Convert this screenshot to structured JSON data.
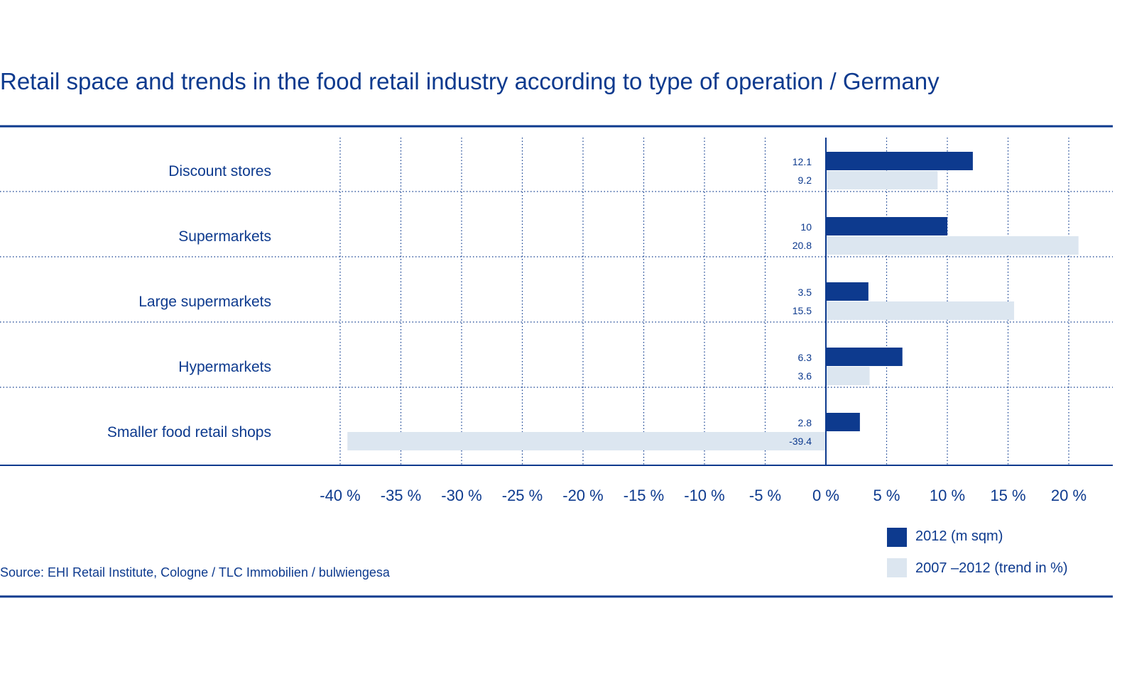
{
  "title": "Retail space and trends in the food retail industry according to type of operation / Germany",
  "source": "Source: EHI Retail Institute, Cologne / TLC Immobilien / bulwiengesa",
  "colors": {
    "primary": "#0d3a8e",
    "series_2012": "#0d3a8e",
    "series_trend": "#dce6f0"
  },
  "chart_data": {
    "type": "bar",
    "orientation": "horizontal",
    "title": "Retail space and trends in the food retail industry according to type of operation / Germany",
    "categories": [
      "Discount stores",
      "Supermarkets",
      "Large supermarkets",
      "Hypermarkets",
      "Smaller food retail shops"
    ],
    "series": [
      {
        "name": "2012 (m sqm)",
        "values": [
          12.1,
          10,
          3.5,
          6.3,
          2.8
        ],
        "labels": [
          "12.1",
          "10",
          "3.5",
          "6.3",
          "2.8"
        ]
      },
      {
        "name": "2007 –2012 (trend in %)",
        "values": [
          9.2,
          20.8,
          15.5,
          3.6,
          -39.4
        ],
        "labels": [
          "9.2",
          "20.8",
          "15.5",
          "3.6",
          "-39.4"
        ]
      }
    ],
    "xlim": [
      -40,
      20
    ],
    "xticks": [
      -40,
      -35,
      -30,
      -25,
      -20,
      -15,
      -10,
      -5,
      0,
      5,
      10,
      15,
      20
    ],
    "xtick_labels": [
      "-40 %",
      "-35 %",
      "-30 %",
      "-25 %",
      "-20 %",
      "-15 %",
      "-10 %",
      "-5 %",
      "0 %",
      "5 %",
      "10 %",
      "15 %",
      "20 %"
    ],
    "grid": true,
    "legend_position": "bottom-right"
  }
}
